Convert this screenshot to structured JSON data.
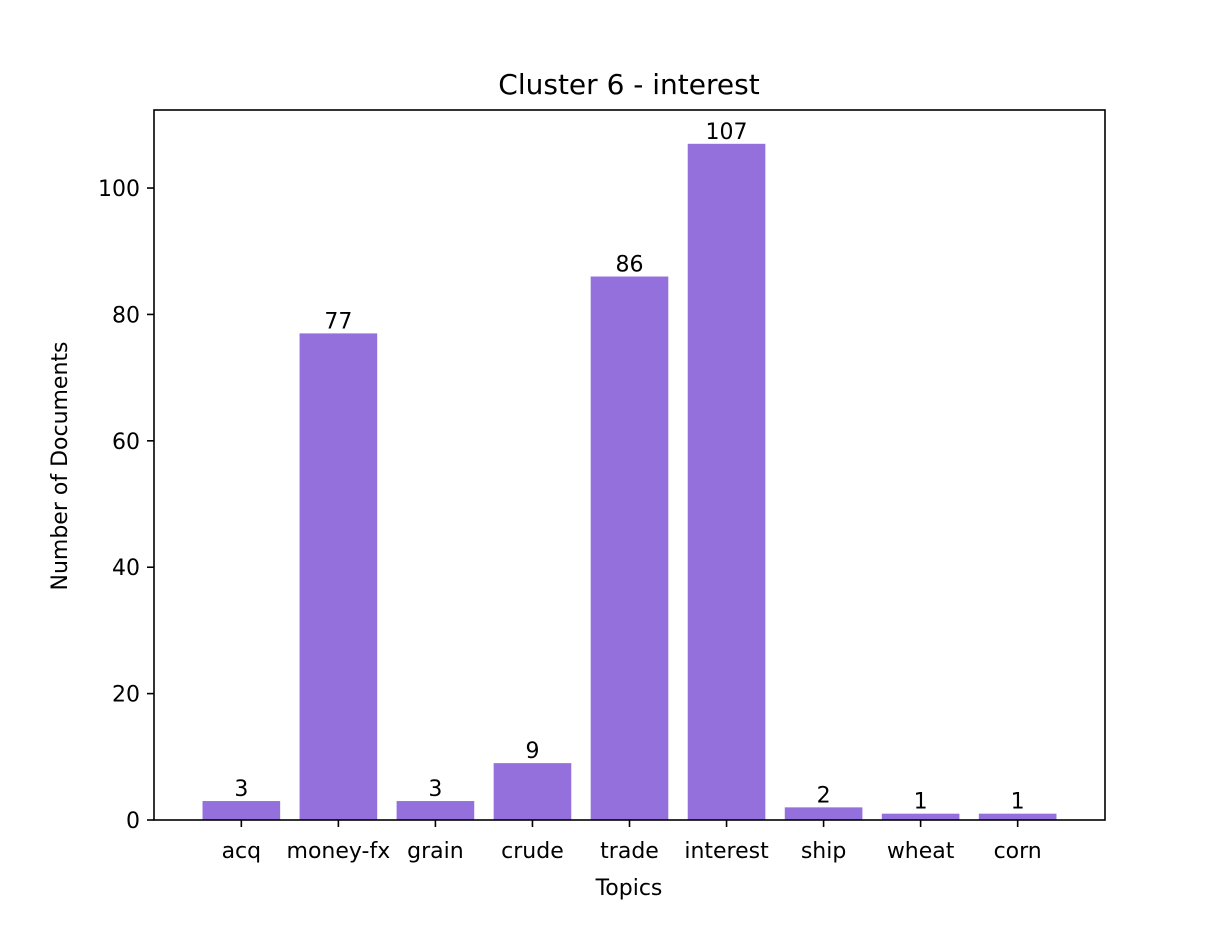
{
  "chart_data": {
    "type": "bar",
    "title": "Cluster 6 - interest",
    "xlabel": "Topics",
    "ylabel": "Number of Documents",
    "categories": [
      "acq",
      "money-fx",
      "grain",
      "crude",
      "trade",
      "interest",
      "ship",
      "wheat",
      "corn"
    ],
    "values": [
      3,
      77,
      3,
      9,
      86,
      107,
      2,
      1,
      1
    ],
    "data_labels": [
      "3",
      "77",
      "3",
      "9",
      "86",
      "107",
      "2",
      "1",
      "1"
    ],
    "ylim": [
      0,
      112.35
    ],
    "yticks": [
      0,
      20,
      40,
      60,
      80,
      100
    ],
    "ytick_labels": [
      "0",
      "20",
      "40",
      "60",
      "80",
      "100"
    ],
    "grid": false,
    "legend": "none",
    "bar_color": "#9370DB"
  }
}
